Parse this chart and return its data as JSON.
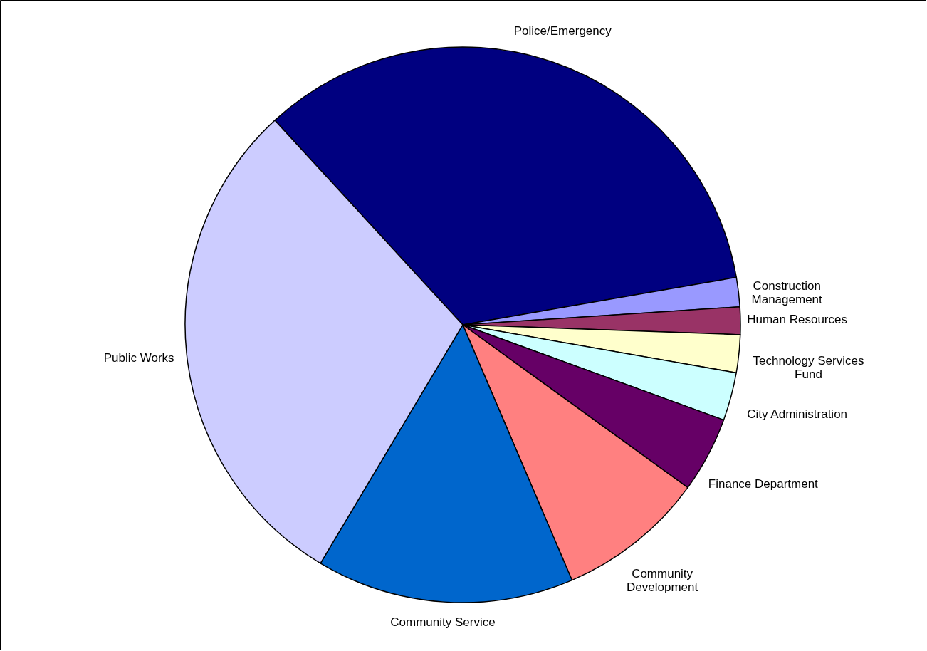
{
  "chart_data": {
    "type": "pie",
    "categories": [
      "Police/Emergency",
      "Construction\nManagement",
      "Human Resources",
      "Technology Services\nFund",
      "City Administration",
      "Finance Department",
      "Community\nDevelopment",
      "Community Service",
      "Public Works"
    ],
    "values": [
      34.1,
      1.7,
      1.6,
      2.2,
      2.8,
      4.4,
      8.6,
      15.0,
      29.6
    ],
    "colors": [
      "#000080",
      "#9999ff",
      "#993366",
      "#ffffcc",
      "#ccffff",
      "#660066",
      "#ff8080",
      "#0066cc",
      "#ccccff"
    ]
  }
}
